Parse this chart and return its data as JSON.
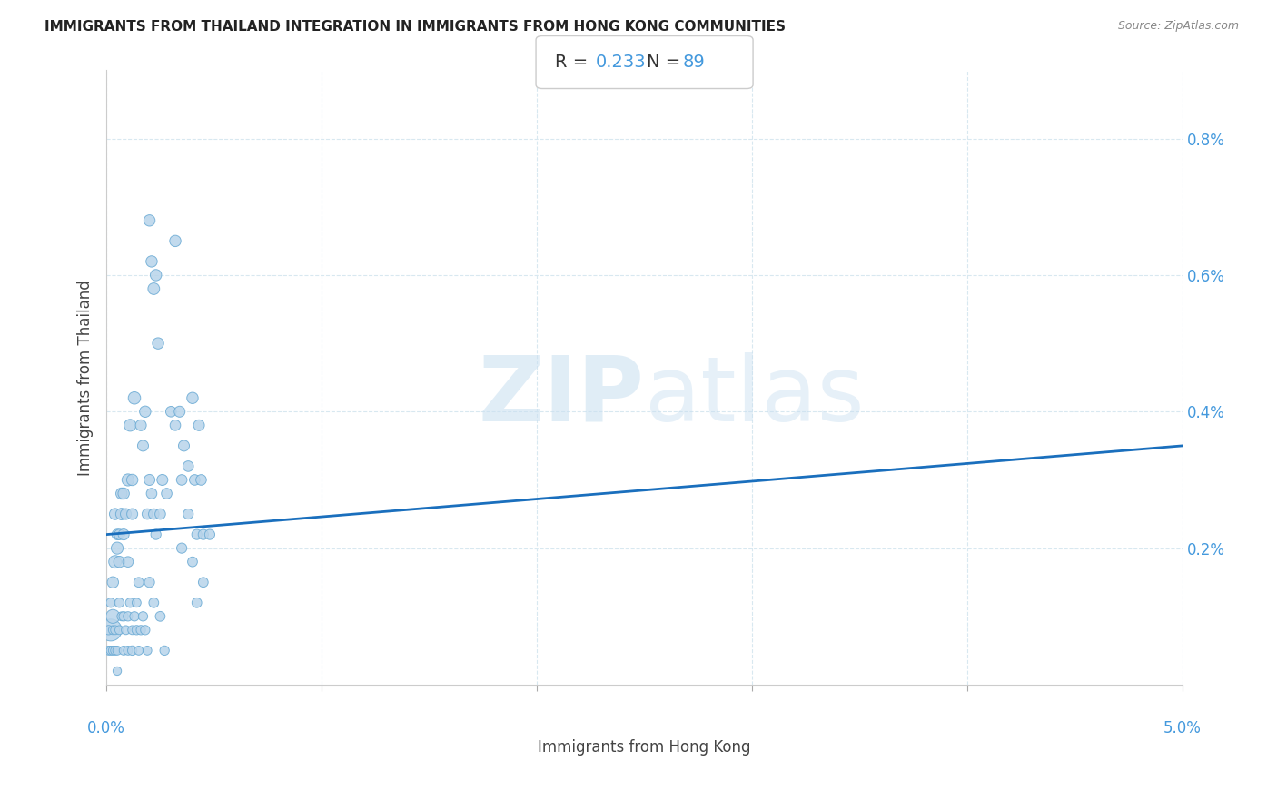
{
  "title": "IMMIGRANTS FROM THAILAND INTEGRATION IN IMMIGRANTS FROM HONG KONG COMMUNITIES",
  "source": "Source: ZipAtlas.com",
  "xlabel": "Immigrants from Hong Kong",
  "ylabel": "Immigrants from Thailand",
  "R": 0.233,
  "N": 89,
  "xlim": [
    0.0,
    0.05
  ],
  "ylim": [
    0.0,
    0.009
  ],
  "yticks": [
    0.002,
    0.004,
    0.006,
    0.008
  ],
  "ytick_labels": [
    "0.2%",
    "0.4%",
    "0.6%",
    "0.8%"
  ],
  "dot_color": "#b8d4ea",
  "dot_edge_color": "#6aaad4",
  "line_color": "#1a6fbd",
  "title_color": "#222222",
  "axis_label_color": "#444444",
  "tick_color": "#4499dd",
  "grid_color": "#d8e8f0",
  "trend_x0": 0.0,
  "trend_y0": 0.0022,
  "trend_x1": 0.05,
  "trend_y1": 0.0035,
  "points": [
    [
      0.0002,
      0.0008
    ],
    [
      0.0003,
      0.001
    ],
    [
      0.0003,
      0.0015
    ],
    [
      0.0004,
      0.0018
    ],
    [
      0.0004,
      0.0025
    ],
    [
      0.0005,
      0.002
    ],
    [
      0.0005,
      0.0022
    ],
    [
      0.0006,
      0.0018
    ],
    [
      0.0006,
      0.0022
    ],
    [
      0.0007,
      0.0025
    ],
    [
      0.0007,
      0.0028
    ],
    [
      0.0008,
      0.0022
    ],
    [
      0.0008,
      0.0028
    ],
    [
      0.0009,
      0.0025
    ],
    [
      0.001,
      0.003
    ],
    [
      0.001,
      0.0018
    ],
    [
      0.0011,
      0.0038
    ],
    [
      0.0012,
      0.003
    ],
    [
      0.0012,
      0.0025
    ],
    [
      0.0013,
      0.0042
    ],
    [
      0.0001,
      0.0005
    ],
    [
      0.0001,
      0.0008
    ],
    [
      0.0002,
      0.0005
    ],
    [
      0.0002,
      0.0012
    ],
    [
      0.0003,
      0.0005
    ],
    [
      0.0003,
      0.0008
    ],
    [
      0.0004,
      0.0005
    ],
    [
      0.0004,
      0.0008
    ],
    [
      0.0005,
      0.0005
    ],
    [
      0.0006,
      0.0008
    ],
    [
      0.0006,
      0.0012
    ],
    [
      0.0007,
      0.001
    ],
    [
      0.0008,
      0.001
    ],
    [
      0.0009,
      0.0008
    ],
    [
      0.001,
      0.001
    ],
    [
      0.0011,
      0.0012
    ],
    [
      0.0012,
      0.0008
    ],
    [
      0.0013,
      0.001
    ],
    [
      0.0014,
      0.0012
    ],
    [
      0.0015,
      0.0015
    ],
    [
      0.0005,
      0.0002
    ],
    [
      0.0008,
      0.0005
    ],
    [
      0.001,
      0.0005
    ],
    [
      0.0012,
      0.0005
    ],
    [
      0.0014,
      0.0008
    ],
    [
      0.0015,
      0.0005
    ],
    [
      0.0016,
      0.0008
    ],
    [
      0.0017,
      0.001
    ],
    [
      0.0018,
      0.0008
    ],
    [
      0.0019,
      0.0005
    ],
    [
      0.002,
      0.0068
    ],
    [
      0.0021,
      0.0062
    ],
    [
      0.0022,
      0.0058
    ],
    [
      0.0023,
      0.006
    ],
    [
      0.0024,
      0.005
    ],
    [
      0.0016,
      0.0038
    ],
    [
      0.0017,
      0.0035
    ],
    [
      0.0018,
      0.004
    ],
    [
      0.0019,
      0.0025
    ],
    [
      0.002,
      0.003
    ],
    [
      0.0021,
      0.0028
    ],
    [
      0.0022,
      0.0025
    ],
    [
      0.0023,
      0.0022
    ],
    [
      0.0025,
      0.0025
    ],
    [
      0.0026,
      0.003
    ],
    [
      0.0028,
      0.0028
    ],
    [
      0.002,
      0.0015
    ],
    [
      0.0022,
      0.0012
    ],
    [
      0.0025,
      0.001
    ],
    [
      0.0027,
      0.0005
    ],
    [
      0.003,
      0.004
    ],
    [
      0.0032,
      0.0038
    ],
    [
      0.0034,
      0.004
    ],
    [
      0.0035,
      0.003
    ],
    [
      0.0036,
      0.0035
    ],
    [
      0.0038,
      0.0032
    ],
    [
      0.004,
      0.0042
    ],
    [
      0.0041,
      0.003
    ],
    [
      0.0042,
      0.0022
    ],
    [
      0.0043,
      0.0038
    ],
    [
      0.0044,
      0.003
    ],
    [
      0.0045,
      0.0022
    ],
    [
      0.0032,
      0.0065
    ],
    [
      0.0035,
      0.002
    ],
    [
      0.0038,
      0.0025
    ],
    [
      0.004,
      0.0018
    ],
    [
      0.0042,
      0.0012
    ],
    [
      0.0045,
      0.0015
    ],
    [
      0.0048,
      0.0022
    ]
  ],
  "point_sizes": [
    300,
    120,
    80,
    100,
    80,
    90,
    70,
    80,
    70,
    85,
    80,
    75,
    80,
    75,
    90,
    70,
    90,
    80,
    75,
    95,
    50,
    55,
    50,
    55,
    50,
    50,
    50,
    50,
    50,
    50,
    55,
    50,
    55,
    50,
    55,
    55,
    50,
    55,
    50,
    60,
    45,
    50,
    50,
    55,
    55,
    50,
    55,
    55,
    55,
    50,
    80,
    80,
    85,
    80,
    80,
    75,
    75,
    80,
    70,
    75,
    70,
    70,
    65,
    70,
    75,
    70,
    65,
    60,
    60,
    55,
    70,
    70,
    75,
    70,
    75,
    70,
    80,
    70,
    65,
    75,
    70,
    65,
    80,
    65,
    65,
    60,
    60,
    60,
    65
  ]
}
